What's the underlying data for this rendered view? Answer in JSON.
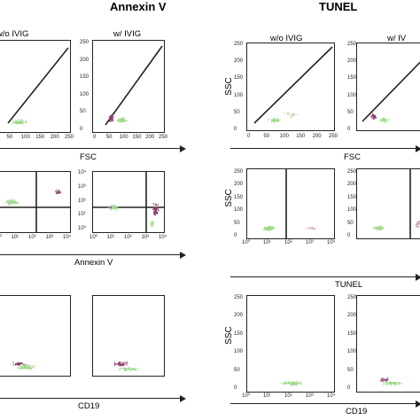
{
  "sections": {
    "left_title": "Annexin V",
    "right_title": "TUNEL"
  },
  "columns": {
    "left": [
      "w/o IVIG",
      "w/ IVIG"
    ],
    "right": [
      "w/o IVIG",
      "w/ IV"
    ]
  },
  "axis_labels": {
    "row1_left": "FSC",
    "row1_right": "FSC",
    "row2_left": "Annexin V",
    "row2_right": "TUNEL",
    "row3_left": "CD19",
    "row3_right": "CD19",
    "ssc": "SSC"
  },
  "ticks": {
    "linear_x": [
      "0",
      "50",
      "100",
      "150",
      "200",
      "250"
    ],
    "linear_y": [
      "250",
      "200",
      "150",
      "100",
      "50",
      "0"
    ],
    "log_x": [
      "10⁰",
      "10¹",
      "10²",
      "10³",
      "10⁴"
    ],
    "log_y": [
      "10⁴",
      "10³",
      "10²",
      "10¹",
      "10⁰"
    ]
  },
  "colors": {
    "event_green": "#9dd98a",
    "event_purple": "#8a3f6e",
    "gate_line": "#222222"
  }
}
